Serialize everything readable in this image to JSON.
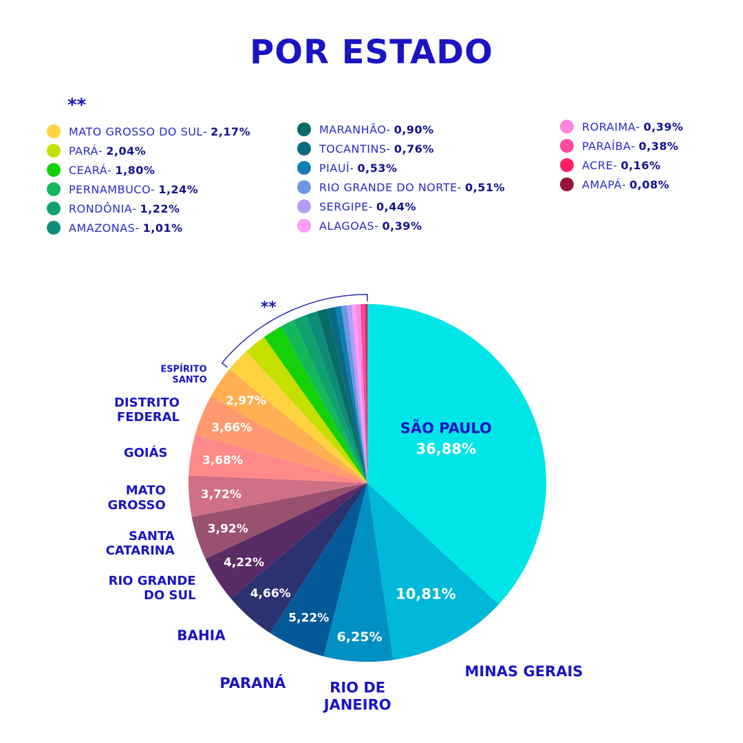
{
  "page": {
    "title": "POR ESTADO",
    "legend_marker": "**",
    "bracket_marker": "**"
  },
  "colors": {
    "title": "#1a14c4",
    "label": "#1a14c4",
    "bracket": "#2a2ab0"
  },
  "legend": {
    "columns": [
      [
        {
          "name": "MATO GROSSO DO SUL",
          "sep": " -",
          "pct": "2,17%",
          "color": "#ffd23f"
        },
        {
          "name": "PARÁ",
          "sep": "-",
          "pct": "2,04%",
          "color": "#c4e000"
        },
        {
          "name": "CEARÁ",
          "sep": " -",
          "pct": "1,80%",
          "color": "#14d10a"
        },
        {
          "name": "PERNAMBUCO",
          "sep": " -",
          "pct": "1,24%",
          "color": "#12b85a"
        },
        {
          "name": "RONDÔNIA",
          "sep": " -",
          "pct": "1,22%",
          "color": "#11a070"
        },
        {
          "name": "AMAZONAS",
          "sep": " -",
          "pct": "1,01%",
          "color": "#0e8c78"
        }
      ],
      [
        {
          "name": "MARANHÃO",
          "sep": " -",
          "pct": "0,90%",
          "color": "#0a6b66"
        },
        {
          "name": "TOCANTINS",
          "sep": " -",
          "pct": "0,76%",
          "color": "#0a6a80"
        },
        {
          "name": "PIAUÍ",
          "sep": " -",
          "pct": "0,53%",
          "color": "#127db4"
        },
        {
          "name": "RIO GRANDE DO NORTE",
          "sep": " -",
          "pct": "0,51%",
          "color": "#6a98e0"
        },
        {
          "name": "SERGIPE",
          "sep": " -",
          "pct": "0,44%",
          "color": "#b49cf8"
        },
        {
          "name": "ALAGOAS",
          "sep": " -",
          "pct": "0,39%",
          "color": "#ff9ef4"
        }
      ],
      [
        {
          "name": "RORAIMA",
          "sep": " -",
          "pct": "0,39%",
          "color": "#ff88dc"
        },
        {
          "name": "PARAÍBA",
          "sep": " -",
          "pct": "0,38%",
          "color": "#ff4a9e"
        },
        {
          "name": "ACRE",
          "sep": " -",
          "pct": "0,16%",
          "color": "#ff1e64"
        },
        {
          "name": "AMAPÁ",
          "sep": " -",
          "pct": "0,08%",
          "color": "#9a1238"
        }
      ]
    ]
  },
  "chart_data": {
    "type": "pie",
    "title": "POR ESTADO",
    "start": "12 o'clock",
    "direction": "clockwise",
    "slices": [
      {
        "label": "SÃO PAULO",
        "value": 36.88,
        "value_label": "36,88%",
        "color": "#00e6e8"
      },
      {
        "label": "MINAS GERAIS",
        "value": 10.81,
        "value_label": "10,81%",
        "color": "#00b8d8"
      },
      {
        "label": "RIO DE JANEIRO",
        "value": 6.25,
        "value_label": "6,25%",
        "color": "#0090c4"
      },
      {
        "label": "PARANÁ",
        "value": 5.22,
        "value_label": "5,22%",
        "color": "#045a98"
      },
      {
        "label": "BAHIA",
        "value": 4.66,
        "value_label": "4,66%",
        "color": "#2c3270"
      },
      {
        "label": "RIO GRANDE DO SUL",
        "value": 4.22,
        "value_label": "4,22%",
        "color": "#5a2c66"
      },
      {
        "label": "SANTA CATARINA",
        "value": 3.92,
        "value_label": "3,92%",
        "color": "#9a5070"
      },
      {
        "label": "MATO GROSSO",
        "value": 3.72,
        "value_label": "3,72%",
        "color": "#d07084"
      },
      {
        "label": "GOIÁS",
        "value": 3.68,
        "value_label": "3,68%",
        "color": "#ff8888"
      },
      {
        "label": "DISTRITO FEDERAL",
        "value": 3.66,
        "value_label": "3,66%",
        "color": "#ff9a70"
      },
      {
        "label": "ESPÍRITO SANTO",
        "value": 2.97,
        "value_label": "2,97%",
        "color": "#ffb050"
      },
      {
        "label": "MATO GROSSO DO SUL",
        "value": 2.17,
        "value_label": "",
        "color": "#ffd23f"
      },
      {
        "label": "PARÁ",
        "value": 2.04,
        "value_label": "",
        "color": "#c4e000"
      },
      {
        "label": "CEARÁ",
        "value": 1.8,
        "value_label": "",
        "color": "#14d10a"
      },
      {
        "label": "PERNAMBUCO",
        "value": 1.24,
        "value_label": "",
        "color": "#12b85a"
      },
      {
        "label": "RONDÔNIA",
        "value": 1.22,
        "value_label": "",
        "color": "#11a070"
      },
      {
        "label": "AMAZONAS",
        "value": 1.01,
        "value_label": "",
        "color": "#0e8c78"
      },
      {
        "label": "MARANHÃO",
        "value": 0.9,
        "value_label": "",
        "color": "#0a6b66"
      },
      {
        "label": "TOCANTINS",
        "value": 0.76,
        "value_label": "",
        "color": "#0a6a80"
      },
      {
        "label": "PIAUÍ",
        "value": 0.53,
        "value_label": "",
        "color": "#127db4"
      },
      {
        "label": "RIO GRANDE DO NORTE",
        "value": 0.51,
        "value_label": "",
        "color": "#6a98e0"
      },
      {
        "label": "SERGIPE",
        "value": 0.44,
        "value_label": "",
        "color": "#b49cf8"
      },
      {
        "label": "ALAGOAS",
        "value": 0.39,
        "value_label": "",
        "color": "#ff9ef4"
      },
      {
        "label": "RORAIMA",
        "value": 0.39,
        "value_label": "",
        "color": "#ff88dc"
      },
      {
        "label": "PARAÍBA",
        "value": 0.38,
        "value_label": "",
        "color": "#ff4a9e"
      },
      {
        "label": "ACRE",
        "value": 0.16,
        "value_label": "",
        "color": "#ff1e64"
      },
      {
        "label": "AMAPÁ",
        "value": 0.08,
        "value_label": "",
        "color": "#9a1238"
      }
    ],
    "outer_labels": [
      {
        "label": "SÃO PAULO",
        "lines": [
          "SÃO PAULO"
        ]
      },
      {
        "label": "MINAS GERAIS",
        "lines": [
          "MINAS GERAIS"
        ]
      },
      {
        "label": "RIO DE JANEIRO",
        "lines": [
          "RIO DE",
          "JANEIRO"
        ]
      },
      {
        "label": "PARANÁ",
        "lines": [
          "PARANÁ"
        ]
      },
      {
        "label": "BAHIA",
        "lines": [
          "BAHIA"
        ]
      },
      {
        "label": "RIO GRANDE DO SUL",
        "lines": [
          "RIO GRANDE",
          "DO SUL"
        ]
      },
      {
        "label": "SANTA CATARINA",
        "lines": [
          "SANTA",
          "CATARINA"
        ]
      },
      {
        "label": "MATO GROSSO",
        "lines": [
          "MATO",
          "GROSSO"
        ]
      },
      {
        "label": "GOIÁS",
        "lines": [
          "GOIÁS"
        ]
      },
      {
        "label": "DISTRITO FEDERAL",
        "lines": [
          "DISTRITO",
          "FEDERAL"
        ]
      },
      {
        "label": "ESPÍRITO SANTO",
        "lines": [
          "ESPÍRITO",
          "SANTO"
        ]
      }
    ],
    "bracket_note": "**"
  }
}
